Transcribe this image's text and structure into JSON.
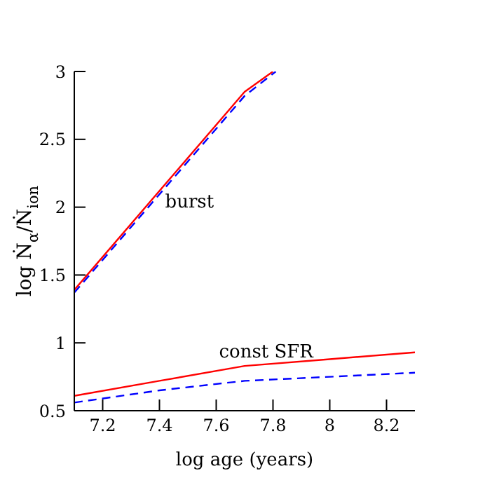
{
  "chart_data": {
    "type": "line",
    "xlabel": "log age (years)",
    "ylabel": "log Ṅ$_{α}$/Ṅ$_{ion}$",
    "xlim": [
      7.1,
      8.3
    ],
    "xticks": [
      7.2,
      7.4,
      7.6,
      7.8,
      8,
      8.2
    ],
    "ylim": [
      0.5,
      3
    ],
    "yticks": [
      0.5,
      1,
      1.5,
      2,
      2.5,
      3
    ],
    "grid": false,
    "marker": "none",
    "series": [
      {
        "color": "#ff0000",
        "line_style": "solid",
        "x": [
          7.1,
          7.7,
          7.8
        ],
        "values": [
          1.39,
          2.85,
          3.0
        ]
      },
      {
        "color": "#0000ff",
        "line_style": "dashed",
        "x": [
          7.1,
          7.7,
          7.81
        ],
        "values": [
          1.37,
          2.82,
          3.0
        ]
      },
      {
        "color": "#ff0000",
        "line_style": "solid",
        "x": [
          7.1,
          7.4,
          7.7,
          8.0,
          8.3
        ],
        "values": [
          0.61,
          0.72,
          0.83,
          0.88,
          0.93
        ]
      },
      {
        "color": "#0000ff",
        "line_style": "dashed",
        "x": [
          7.1,
          7.4,
          7.7,
          8.0,
          8.3
        ],
        "values": [
          0.56,
          0.65,
          0.72,
          0.75,
          0.78
        ]
      }
    ],
    "annotations": [
      {
        "text": "burst",
        "x": 7.41,
        "y": 2.14
      },
      {
        "text": "const SFR",
        "x": 7.6,
        "y": 0.79
      }
    ]
  }
}
